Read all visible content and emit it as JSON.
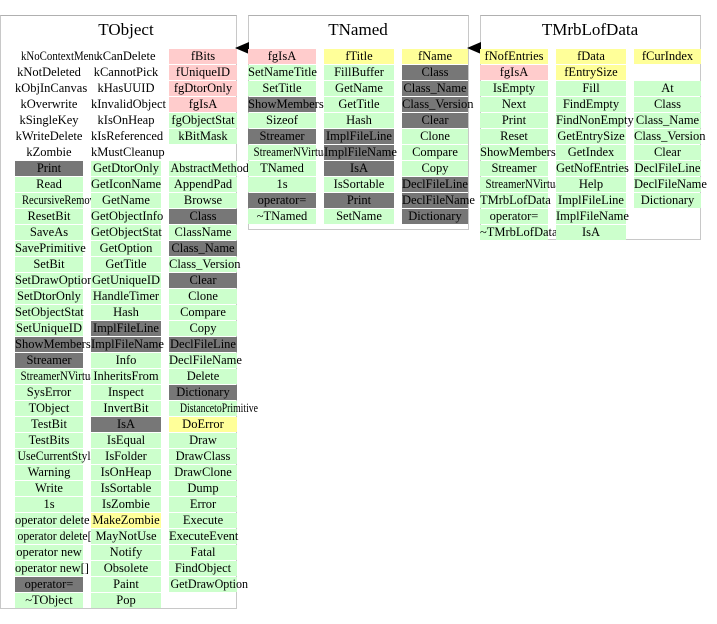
{
  "colors": {
    "method": "#ccffcc",
    "pointer_member": "#ffcccc",
    "data_member": "#ffff99",
    "dark": "#777777",
    "border": "#c8c8c8"
  },
  "classes": [
    {
      "title": "TObject",
      "columns": [
        [
          [
            "kNoContextMenu",
            "w"
          ],
          [
            "kNotDeleted",
            "w"
          ],
          [
            "kObjInCanvas",
            "w"
          ],
          [
            "kOverwrite",
            "w"
          ],
          [
            "kSingleKey",
            "w"
          ],
          [
            "kWriteDelete",
            "w"
          ],
          [
            "kZombie",
            "w"
          ],
          [
            "Print",
            "d"
          ],
          [
            "Read",
            "g"
          ],
          [
            "RecursiveRemove",
            "g"
          ],
          [
            "ResetBit",
            "g"
          ],
          [
            "SaveAs",
            "g"
          ],
          [
            "SavePrimitive",
            "g"
          ],
          [
            "SetBit",
            "g"
          ],
          [
            "SetDrawOption",
            "g"
          ],
          [
            "SetDtorOnly",
            "g"
          ],
          [
            "SetObjectStat",
            "g"
          ],
          [
            "SetUniqueID",
            "g"
          ],
          [
            "ShowMembers",
            "d"
          ],
          [
            "Streamer",
            "d"
          ],
          [
            "StreamerNVirtual",
            "g"
          ],
          [
            "SysError",
            "g"
          ],
          [
            "TObject",
            "g"
          ],
          [
            "TestBit",
            "g"
          ],
          [
            "TestBits",
            "g"
          ],
          [
            "UseCurrentStyle",
            "g"
          ],
          [
            "Warning",
            "g"
          ],
          [
            "Write",
            "g"
          ],
          [
            "1s",
            "g"
          ],
          [
            "operator delete",
            "g"
          ],
          [
            "operator delete[]",
            "g"
          ],
          [
            "operator new",
            "g"
          ],
          [
            "operator new[]",
            "g"
          ],
          [
            "operator=",
            "d"
          ],
          [
            "~TObject",
            "g"
          ]
        ],
        [
          [
            "kCanDelete",
            "w"
          ],
          [
            "kCannotPick",
            "w"
          ],
          [
            "kHasUUID",
            "w"
          ],
          [
            "kInvalidObject",
            "w"
          ],
          [
            "kIsOnHeap",
            "w"
          ],
          [
            "kIsReferenced",
            "w"
          ],
          [
            "kMustCleanup",
            "w"
          ],
          [
            "GetDtorOnly",
            "g"
          ],
          [
            "GetIconName",
            "g"
          ],
          [
            "GetName",
            "g"
          ],
          [
            "GetObjectInfo",
            "g"
          ],
          [
            "GetObjectStat",
            "g"
          ],
          [
            "GetOption",
            "g"
          ],
          [
            "GetTitle",
            "g"
          ],
          [
            "GetUniqueID",
            "g"
          ],
          [
            "HandleTimer",
            "g"
          ],
          [
            "Hash",
            "g"
          ],
          [
            "ImplFileLine",
            "d"
          ],
          [
            "ImplFileName",
            "d"
          ],
          [
            "Info",
            "g"
          ],
          [
            "InheritsFrom",
            "g"
          ],
          [
            "Inspect",
            "g"
          ],
          [
            "InvertBit",
            "g"
          ],
          [
            "IsA",
            "d"
          ],
          [
            "IsEqual",
            "g"
          ],
          [
            "IsFolder",
            "g"
          ],
          [
            "IsOnHeap",
            "g"
          ],
          [
            "IsSortable",
            "g"
          ],
          [
            "IsZombie",
            "g"
          ],
          [
            "MakeZombie",
            "y"
          ],
          [
            "MayNotUse",
            "g"
          ],
          [
            "Notify",
            "g"
          ],
          [
            "Obsolete",
            "g"
          ],
          [
            "Paint",
            "g"
          ],
          [
            "Pop",
            "g"
          ]
        ],
        [
          [
            "fBits",
            "p"
          ],
          [
            "fUniqueID",
            "p"
          ],
          [
            "fgDtorOnly",
            "p"
          ],
          [
            "fgIsA",
            "p"
          ],
          [
            "fgObjectStat",
            "g"
          ],
          [
            "kBitMask",
            "g"
          ],
          [
            "",
            "w"
          ],
          [
            "AbstractMethod",
            "g"
          ],
          [
            "AppendPad",
            "g"
          ],
          [
            "Browse",
            "g"
          ],
          [
            "Class",
            "d"
          ],
          [
            "ClassName",
            "g"
          ],
          [
            "Class_Name",
            "d"
          ],
          [
            "Class_Version",
            "g"
          ],
          [
            "Clear",
            "d"
          ],
          [
            "Clone",
            "g"
          ],
          [
            "Compare",
            "g"
          ],
          [
            "Copy",
            "g"
          ],
          [
            "DeclFileLine",
            "d"
          ],
          [
            "DeclFileName",
            "g"
          ],
          [
            "Delete",
            "g"
          ],
          [
            "Dictionary",
            "d"
          ],
          [
            "DistancetoPrimitive",
            "g"
          ],
          [
            "DoError",
            "y"
          ],
          [
            "Draw",
            "g"
          ],
          [
            "DrawClass",
            "g"
          ],
          [
            "DrawClone",
            "g"
          ],
          [
            "Dump",
            "g"
          ],
          [
            "Error",
            "g"
          ],
          [
            "Execute",
            "g"
          ],
          [
            "ExecuteEvent",
            "g"
          ],
          [
            "Fatal",
            "g"
          ],
          [
            "FindObject",
            "g"
          ],
          [
            "GetDrawOption",
            "g"
          ]
        ]
      ]
    },
    {
      "title": "TNamed",
      "columns": [
        [
          [
            "fgIsA",
            "p"
          ],
          [
            "SetNameTitle",
            "g"
          ],
          [
            "SetTitle",
            "g"
          ],
          [
            "ShowMembers",
            "d"
          ],
          [
            "Sizeof",
            "g"
          ],
          [
            "Streamer",
            "d"
          ],
          [
            "StreamerNVirtual",
            "g"
          ],
          [
            "TNamed",
            "g"
          ],
          [
            "1s",
            "g"
          ],
          [
            "operator=",
            "d"
          ],
          [
            "~TNamed",
            "g"
          ]
        ],
        [
          [
            "fTitle",
            "y"
          ],
          [
            "FillBuffer",
            "g"
          ],
          [
            "GetName",
            "g"
          ],
          [
            "GetTitle",
            "g"
          ],
          [
            "Hash",
            "g"
          ],
          [
            "ImplFileLine",
            "d"
          ],
          [
            "ImplFileName",
            "d"
          ],
          [
            "IsA",
            "d"
          ],
          [
            "IsSortable",
            "g"
          ],
          [
            "Print",
            "d"
          ],
          [
            "SetName",
            "g"
          ]
        ],
        [
          [
            "fName",
            "y"
          ],
          [
            "Class",
            "d"
          ],
          [
            "Class_Name",
            "d"
          ],
          [
            "Class_Version",
            "d"
          ],
          [
            "Clear",
            "d"
          ],
          [
            "Clone",
            "g"
          ],
          [
            "Compare",
            "g"
          ],
          [
            "Copy",
            "g"
          ],
          [
            "DeclFileLine",
            "d"
          ],
          [
            "DeclFileName",
            "d"
          ],
          [
            "Dictionary",
            "d"
          ]
        ]
      ]
    },
    {
      "title": "TMrbLofData",
      "columns": [
        [
          [
            "fNofEntries",
            "y"
          ],
          [
            "fgIsA",
            "p"
          ],
          [
            "IsEmpty",
            "g"
          ],
          [
            "Next",
            "g"
          ],
          [
            "Print",
            "g"
          ],
          [
            "Reset",
            "g"
          ],
          [
            "ShowMembers",
            "g"
          ],
          [
            "Streamer",
            "g"
          ],
          [
            "StreamerNVirtual",
            "g"
          ],
          [
            "TMrbLofData",
            "g"
          ],
          [
            "operator=",
            "g"
          ],
          [
            "~TMrbLofData",
            "g"
          ]
        ],
        [
          [
            "fData",
            "y"
          ],
          [
            "fEntrySize",
            "y"
          ],
          [
            "Fill",
            "g"
          ],
          [
            "FindEmpty",
            "g"
          ],
          [
            "FindNonEmpty",
            "g"
          ],
          [
            "GetEntrySize",
            "g"
          ],
          [
            "GetIndex",
            "g"
          ],
          [
            "GetNofEntries",
            "g"
          ],
          [
            "Help",
            "g"
          ],
          [
            "ImplFileLine",
            "g"
          ],
          [
            "ImplFileName",
            "g"
          ],
          [
            "IsA",
            "g"
          ]
        ],
        [
          [
            "fCurIndex",
            "y"
          ],
          [
            "",
            "w"
          ],
          [
            "At",
            "g"
          ],
          [
            "Class",
            "g"
          ],
          [
            "Class_Name",
            "g"
          ],
          [
            "Class_Version",
            "g"
          ],
          [
            "Clear",
            "g"
          ],
          [
            "DeclFileLine",
            "g"
          ],
          [
            "DeclFileName",
            "g"
          ],
          [
            "Dictionary",
            "g"
          ]
        ]
      ]
    }
  ]
}
